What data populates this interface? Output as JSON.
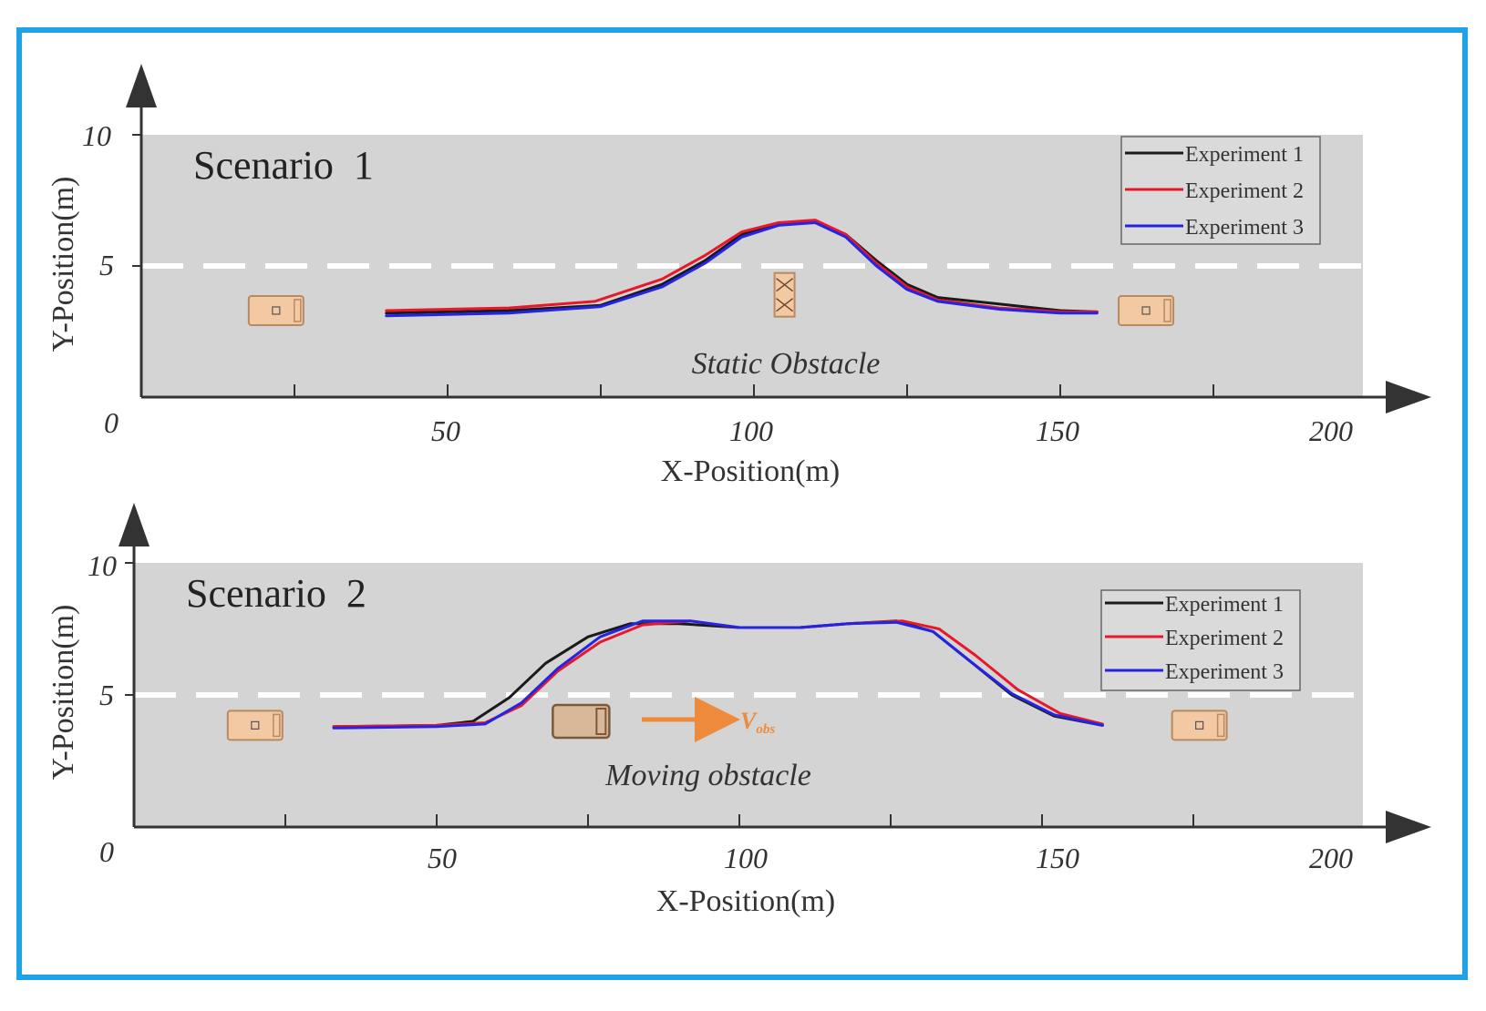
{
  "colors": {
    "frame": "#1fa3e6",
    "road": "#d4d4d4",
    "lane_marking": "#ffffff",
    "vehicle_fill": "#f3c9a3",
    "vehicle_stroke": "#b88a62",
    "velocity_arrow": "#ee8a3c",
    "experiment_1": "#1a1a1a",
    "experiment_2": "#e8182a",
    "experiment_3": "#2424e6"
  },
  "chart_data": [
    {
      "type": "line",
      "title": "Scenario  1",
      "xlabel": "X-Position(m)",
      "ylabel": "Y-Position(m)",
      "xlim": [
        0,
        200
      ],
      "ylim": [
        0,
        10
      ],
      "x_ticks": [
        "0",
        "50",
        "100",
        "150",
        "200"
      ],
      "y_ticks": [
        "5",
        "10"
      ],
      "legend_position": "top-right",
      "lane_divider_y": 5,
      "annotation": "Static Obstacle",
      "series": [
        {
          "name": "Experiment 1",
          "color_key": "experiment_1",
          "x": [
            40,
            60,
            75,
            85,
            92,
            98,
            104,
            110,
            115,
            120,
            125,
            130,
            140,
            150,
            156
          ],
          "y": [
            3.2,
            3.3,
            3.5,
            4.3,
            5.2,
            6.2,
            6.6,
            6.7,
            6.2,
            5.2,
            4.3,
            3.8,
            3.55,
            3.3,
            3.25
          ]
        },
        {
          "name": "Experiment 2",
          "color_key": "experiment_2",
          "x": [
            40,
            60,
            74,
            85,
            92,
            98,
            104,
            110,
            115,
            120,
            125,
            130,
            140,
            150,
            156
          ],
          "y": [
            3.3,
            3.4,
            3.65,
            4.5,
            5.4,
            6.3,
            6.65,
            6.75,
            6.2,
            5.1,
            4.2,
            3.7,
            3.4,
            3.25,
            3.25
          ]
        },
        {
          "name": "Experiment 3",
          "color_key": "experiment_3",
          "x": [
            40,
            60,
            75,
            85,
            92,
            98,
            104,
            110,
            115,
            120,
            125,
            130,
            140,
            150,
            156
          ],
          "y": [
            3.1,
            3.2,
            3.45,
            4.2,
            5.1,
            6.1,
            6.55,
            6.65,
            6.1,
            5.0,
            4.1,
            3.65,
            3.35,
            3.2,
            3.2
          ]
        }
      ],
      "ego_vehicles": [
        {
          "x": 22,
          "y": 3.3
        },
        {
          "x": 164,
          "y": 3.3
        }
      ],
      "obstacle": {
        "x": 105,
        "y": 3.9,
        "kind": "static"
      }
    },
    {
      "type": "line",
      "title": "Scenario  2",
      "xlabel": "X-Position(m)",
      "ylabel": "Y-Position(m)",
      "xlim": [
        0,
        200
      ],
      "ylim": [
        0,
        10
      ],
      "x_ticks": [
        "0",
        "50",
        "100",
        "150",
        "200"
      ],
      "y_ticks": [
        "5",
        "10"
      ],
      "legend_position": "top-right",
      "lane_divider_y": 5,
      "annotation": "Moving obstacle",
      "velocity_label": "V",
      "velocity_subscript": "obs",
      "series": [
        {
          "name": "Experiment 1",
          "color_key": "experiment_1",
          "x": [
            33,
            50,
            56,
            62,
            68,
            75,
            82,
            90,
            100,
            110,
            118,
            126,
            132,
            138,
            145,
            152,
            160
          ],
          "y": [
            3.8,
            3.85,
            4.0,
            4.9,
            6.2,
            7.2,
            7.7,
            7.7,
            7.55,
            7.55,
            7.7,
            7.8,
            7.4,
            6.3,
            5.0,
            4.2,
            3.85
          ]
        },
        {
          "name": "Experiment 2",
          "color_key": "experiment_2",
          "x": [
            33,
            50,
            58,
            64,
            70,
            77,
            84,
            92,
            100,
            110,
            118,
            127,
            133,
            139,
            146,
            153,
            160
          ],
          "y": [
            3.8,
            3.85,
            3.95,
            4.6,
            5.9,
            7.0,
            7.65,
            7.8,
            7.55,
            7.55,
            7.7,
            7.8,
            7.5,
            6.5,
            5.2,
            4.3,
            3.9
          ]
        },
        {
          "name": "Experiment 3",
          "color_key": "experiment_3",
          "x": [
            33,
            50,
            58,
            64,
            70,
            77,
            84,
            92,
            100,
            110,
            118,
            126,
            132,
            138,
            145,
            152,
            160
          ],
          "y": [
            3.75,
            3.8,
            3.9,
            4.7,
            6.0,
            7.2,
            7.8,
            7.8,
            7.55,
            7.55,
            7.7,
            7.75,
            7.4,
            6.3,
            5.05,
            4.25,
            3.85
          ]
        }
      ],
      "ego_vehicles": [
        {
          "x": 20,
          "y": 3.85
        },
        {
          "x": 176,
          "y": 3.85
        }
      ],
      "obstacle": {
        "x": 74,
        "y": 4.0,
        "kind": "moving"
      }
    }
  ]
}
